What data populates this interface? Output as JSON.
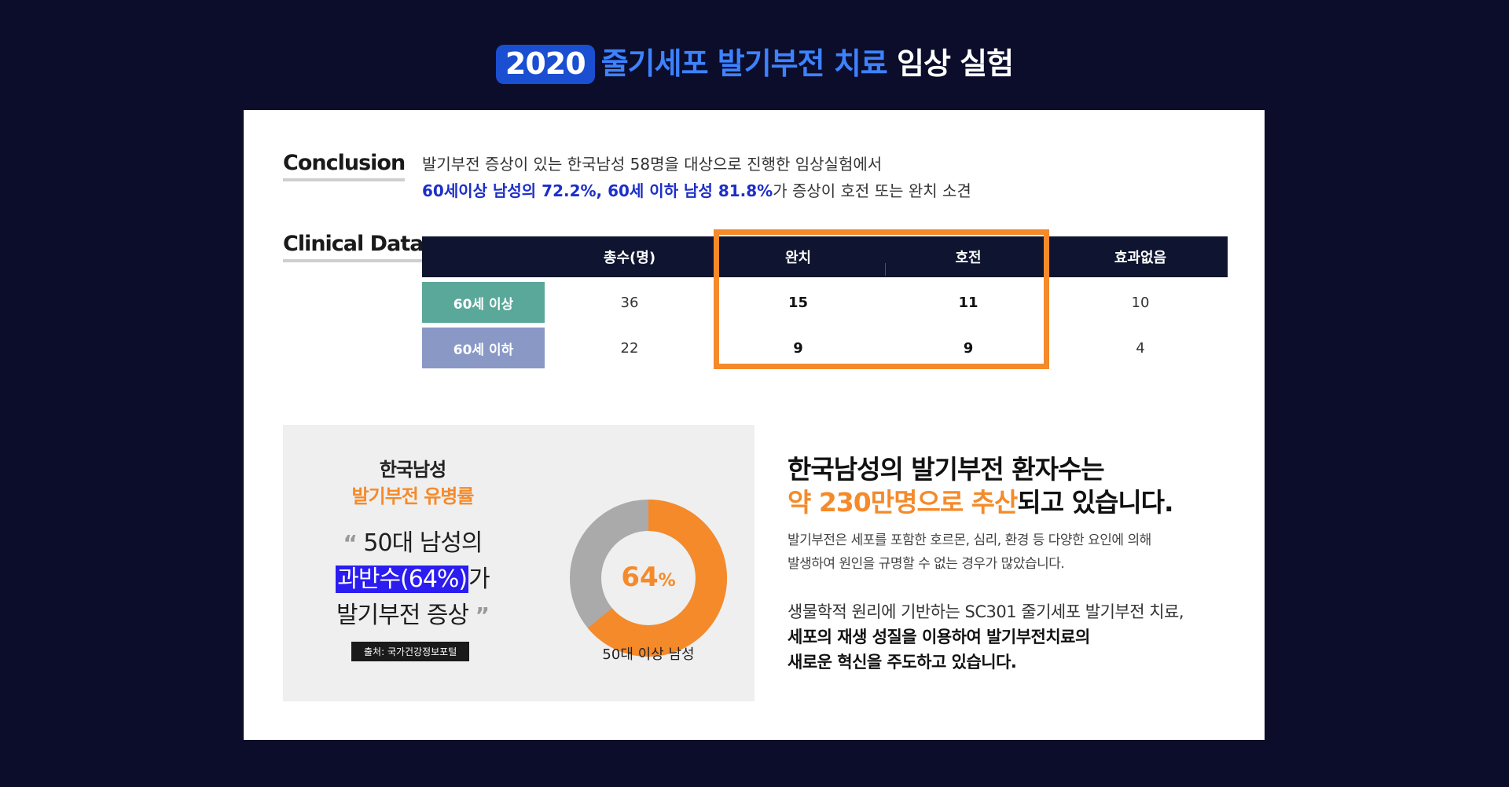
{
  "title": {
    "year": "2020",
    "blue": "줄기세포 발기부전 치료",
    "white": "임상 실험"
  },
  "conclusion": {
    "label": "Conclusion",
    "line1": "발기부전 증상이 있는 한국남성 58명을 대상으로 진행한 임상실험에서",
    "line2_highlight": "60세이상 남성의 72.2%, 60세 이하 남성 81.8%",
    "line2_rest": "가 증상이 호전 또는 완치 소견"
  },
  "clinical": {
    "label": "Clinical Data",
    "headers": [
      "",
      "총수(명)",
      "완치",
      "호전",
      "효과없음"
    ],
    "rows": [
      {
        "label": "60세 이상",
        "color": "#5aa89a",
        "values": [
          "36",
          "15",
          "11",
          "10"
        ]
      },
      {
        "label": "60세 이하",
        "color": "#8a98c6",
        "values": [
          "22",
          "9",
          "9",
          "4"
        ]
      }
    ],
    "highlight_color": "#f58a2a"
  },
  "stat": {
    "title1": "한국남성",
    "title2": "발기부전 유병률",
    "quote_open": "“",
    "quote_close": "”",
    "quote_line1": "50대 남성의",
    "quote_mark": "과반수(64%)",
    "quote_after_mark": "가",
    "quote_line3": "발기부전 증상",
    "source": "출처: 국가건강정보포털",
    "donut_value": "64",
    "donut_unit": "%",
    "donut_fraction": 0.64,
    "donut_caption": "50대 이상 남성",
    "donut_color": "#f58a2a",
    "donut_rest_color": "#aaaaaa"
  },
  "right": {
    "h1_line1": "한국남성의 발기부전 환자수는",
    "h1_orange": "약 230만명으로 추산",
    "h1_rest": "되고 있습니다.",
    "p1_line1": "발기부전은 세포를 포함한 호르몬, 심리, 환경 등 다양한 요인에 의해",
    "p1_line2": "발생하여 원인을 규명할 수 없는 경우가 많았습니다.",
    "p2_line1": "생물학적 원리에 기반하는 SC301 줄기세포 발기부전 치료,",
    "p2_line2": "세포의 재생 성질을 이용하여 발기부전치료의",
    "p2_line3": "새로운 혁신을 주도하고 있습니다."
  }
}
